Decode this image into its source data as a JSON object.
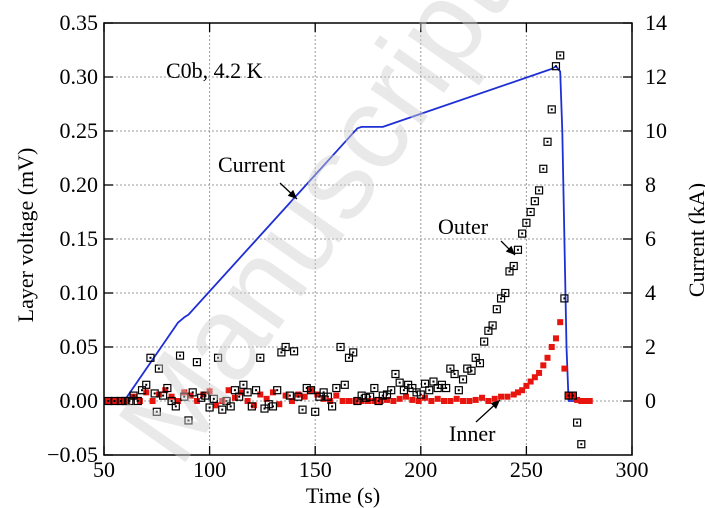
{
  "chart_data": {
    "type": "scatter",
    "title": "",
    "annotation_title": "C0b, 4.2 K",
    "xlabel": "Time (s)",
    "ylabel": "Layer voltage (mV)",
    "y2label": "Current (kA)",
    "xlim": [
      50,
      300
    ],
    "ylim": [
      -0.05,
      0.35
    ],
    "y2lim": [
      -2,
      14
    ],
    "xticks": [
      "50",
      "100",
      "150",
      "200",
      "250",
      "300"
    ],
    "yticks": [
      "−0.05",
      "0.00",
      "0.05",
      "0.10",
      "0.15",
      "0.20",
      "0.25",
      "0.30",
      "0.35"
    ],
    "y2ticks": [
      "0",
      "2",
      "4",
      "6",
      "8",
      "10",
      "12",
      "14"
    ],
    "grid": true,
    "colors": {
      "current": "#1f2fd6",
      "outer": "#000000",
      "inner": "#e8150f",
      "grid": "#9a9a9a"
    },
    "annotations": {
      "current": "Current",
      "outer": "Outer",
      "inner": "Inner"
    },
    "watermark": "Manuscript",
    "series": [
      {
        "name": "Current",
        "axis": "right",
        "style": "line",
        "x": [
          50,
          59,
          60,
          85,
          88,
          90,
          170,
          172,
          182,
          262,
          264,
          266,
          267,
          268,
          269,
          270,
          280
        ],
        "y": [
          0,
          0,
          0.05,
          2.9,
          3.1,
          3.2,
          10.1,
          10.15,
          10.15,
          12.3,
          12.4,
          12.2,
          10,
          6,
          2,
          0,
          0
        ]
      },
      {
        "name": "Outer",
        "axis": "left",
        "style": "open-square",
        "x": [
          52,
          55,
          58,
          60,
          62,
          64,
          66,
          68,
          70,
          72,
          74,
          75,
          76,
          78,
          80,
          82,
          84,
          86,
          88,
          90,
          92,
          94,
          96,
          98,
          100,
          102,
          104,
          106,
          108,
          110,
          112,
          114,
          116,
          118,
          120,
          122,
          124,
          126,
          128,
          130,
          132,
          134,
          136,
          138,
          140,
          142,
          144,
          146,
          148,
          150,
          152,
          154,
          156,
          158,
          160,
          162,
          164,
          166,
          168,
          170,
          172,
          174,
          176,
          178,
          180,
          182,
          184,
          186,
          188,
          190,
          192,
          194,
          196,
          198,
          200,
          202,
          204,
          206,
          208,
          210,
          212,
          214,
          216,
          218,
          220,
          222,
          224,
          226,
          228,
          230,
          232,
          234,
          236,
          238,
          240,
          242,
          244,
          246,
          248,
          250,
          252,
          254,
          256,
          258,
          260,
          262,
          264,
          266,
          268,
          270,
          272,
          274,
          276
        ],
        "y": [
          0.0,
          0.0,
          0.0,
          0.0,
          0.0,
          0.005,
          0.0,
          0.01,
          0.015,
          0.04,
          0.007,
          -0.01,
          0.03,
          0.005,
          0.012,
          0.0,
          -0.005,
          0.042,
          0.004,
          -0.018,
          0.008,
          0.036,
          0.003,
          0.005,
          -0.006,
          0.002,
          0.04,
          -0.008,
          0.0,
          -0.005,
          0.01,
          0.004,
          0.015,
          0.008,
          -0.005,
          0.01,
          0.04,
          -0.007,
          -0.003,
          -0.005,
          0.01,
          0.045,
          0.05,
          0.005,
          0.046,
          0.004,
          -0.008,
          0.012,
          0.01,
          -0.01,
          0.004,
          0.008,
          0.004,
          -0.005,
          0.012,
          0.05,
          0.015,
          0.04,
          0.045,
          0.0,
          0.005,
          0.003,
          0.004,
          0.012,
          0.0,
          0.005,
          0.006,
          0.01,
          0.025,
          0.017,
          0.01,
          0.015,
          0.012,
          0.008,
          0.006,
          0.016,
          0.01,
          0.018,
          0.012,
          0.015,
          0.012,
          0.03,
          0.025,
          0.01,
          0.02,
          0.03,
          0.028,
          0.04,
          0.035,
          0.055,
          0.065,
          0.07,
          0.085,
          0.095,
          0.1,
          0.12,
          0.125,
          0.14,
          0.155,
          0.165,
          0.175,
          0.185,
          0.195,
          0.215,
          0.24,
          0.27,
          0.31,
          0.32,
          0.095,
          0.005,
          0.005,
          -0.02,
          -0.04
        ]
      },
      {
        "name": "Inner",
        "axis": "left",
        "style": "filled-square",
        "x": [
          52,
          55,
          58,
          61,
          64,
          67,
          70,
          73,
          76,
          79,
          82,
          85,
          88,
          91,
          94,
          97,
          100,
          103,
          106,
          109,
          112,
          115,
          118,
          121,
          124,
          127,
          130,
          133,
          136,
          139,
          142,
          145,
          148,
          151,
          154,
          157,
          160,
          163,
          166,
          169,
          172,
          175,
          178,
          181,
          184,
          187,
          190,
          193,
          196,
          199,
          202,
          205,
          208,
          211,
          214,
          217,
          220,
          223,
          226,
          229,
          232,
          235,
          238,
          241,
          244,
          246,
          248,
          250,
          252,
          254,
          256,
          258,
          260,
          262,
          264,
          266,
          268,
          270,
          272,
          274,
          276,
          278,
          280
        ],
        "y": [
          0.0,
          0.0,
          0.0,
          0.0,
          0.004,
          0.0,
          0.008,
          0.0,
          0.006,
          0.01,
          0.004,
          0.0,
          0.008,
          0.005,
          0.0,
          0.006,
          0.009,
          -0.004,
          0.0,
          0.01,
          0.003,
          0.008,
          0.0,
          -0.004,
          0.006,
          0.002,
          0.008,
          -0.003,
          0.005,
          0.0,
          0.006,
          0.004,
          0.01,
          0.006,
          0.002,
          0.0,
          0.005,
          0.0,
          0.0,
          0.0,
          0.0,
          0.0,
          0.0,
          0.0,
          0.001,
          0.0,
          0.002,
          0.004,
          0.001,
          0.0,
          0.003,
          0.0,
          0.002,
          0.0,
          0.0,
          0.002,
          0.0,
          0.0,
          0.001,
          0.003,
          0.0,
          0.002,
          0.004,
          0.004,
          0.006,
          0.008,
          0.01,
          0.014,
          0.018,
          0.022,
          0.026,
          0.033,
          0.04,
          0.05,
          0.058,
          0.073,
          0.03,
          0.005,
          0.005,
          0.001,
          0.0,
          0.0,
          0.0
        ]
      }
    ]
  }
}
